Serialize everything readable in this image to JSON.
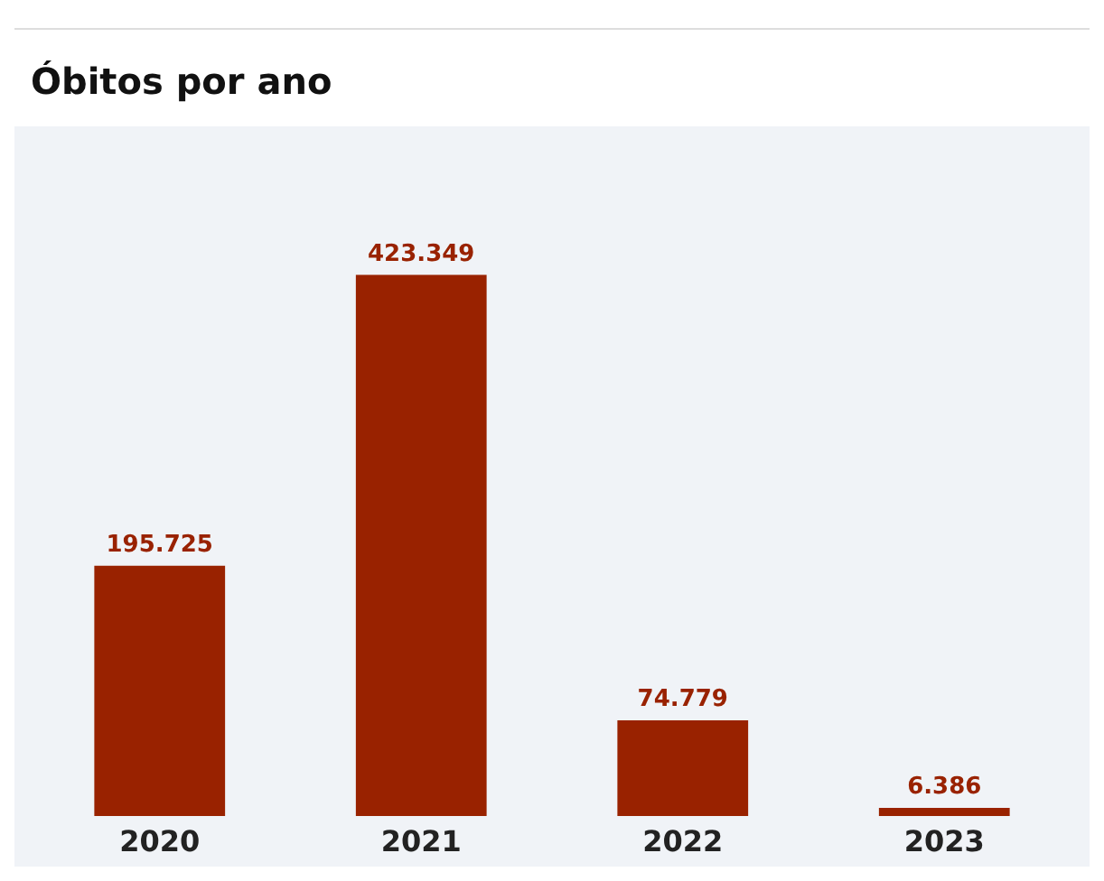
{
  "chart_data": {
    "type": "bar",
    "title": "Óbitos por ano",
    "categories": [
      "2020",
      "2021",
      "2022",
      "2023"
    ],
    "values": [
      195725,
      423349,
      74779,
      6386
    ],
    "value_labels": [
      "195.725",
      "423.349",
      "74.779",
      "6.386"
    ],
    "color": "#992200"
  }
}
